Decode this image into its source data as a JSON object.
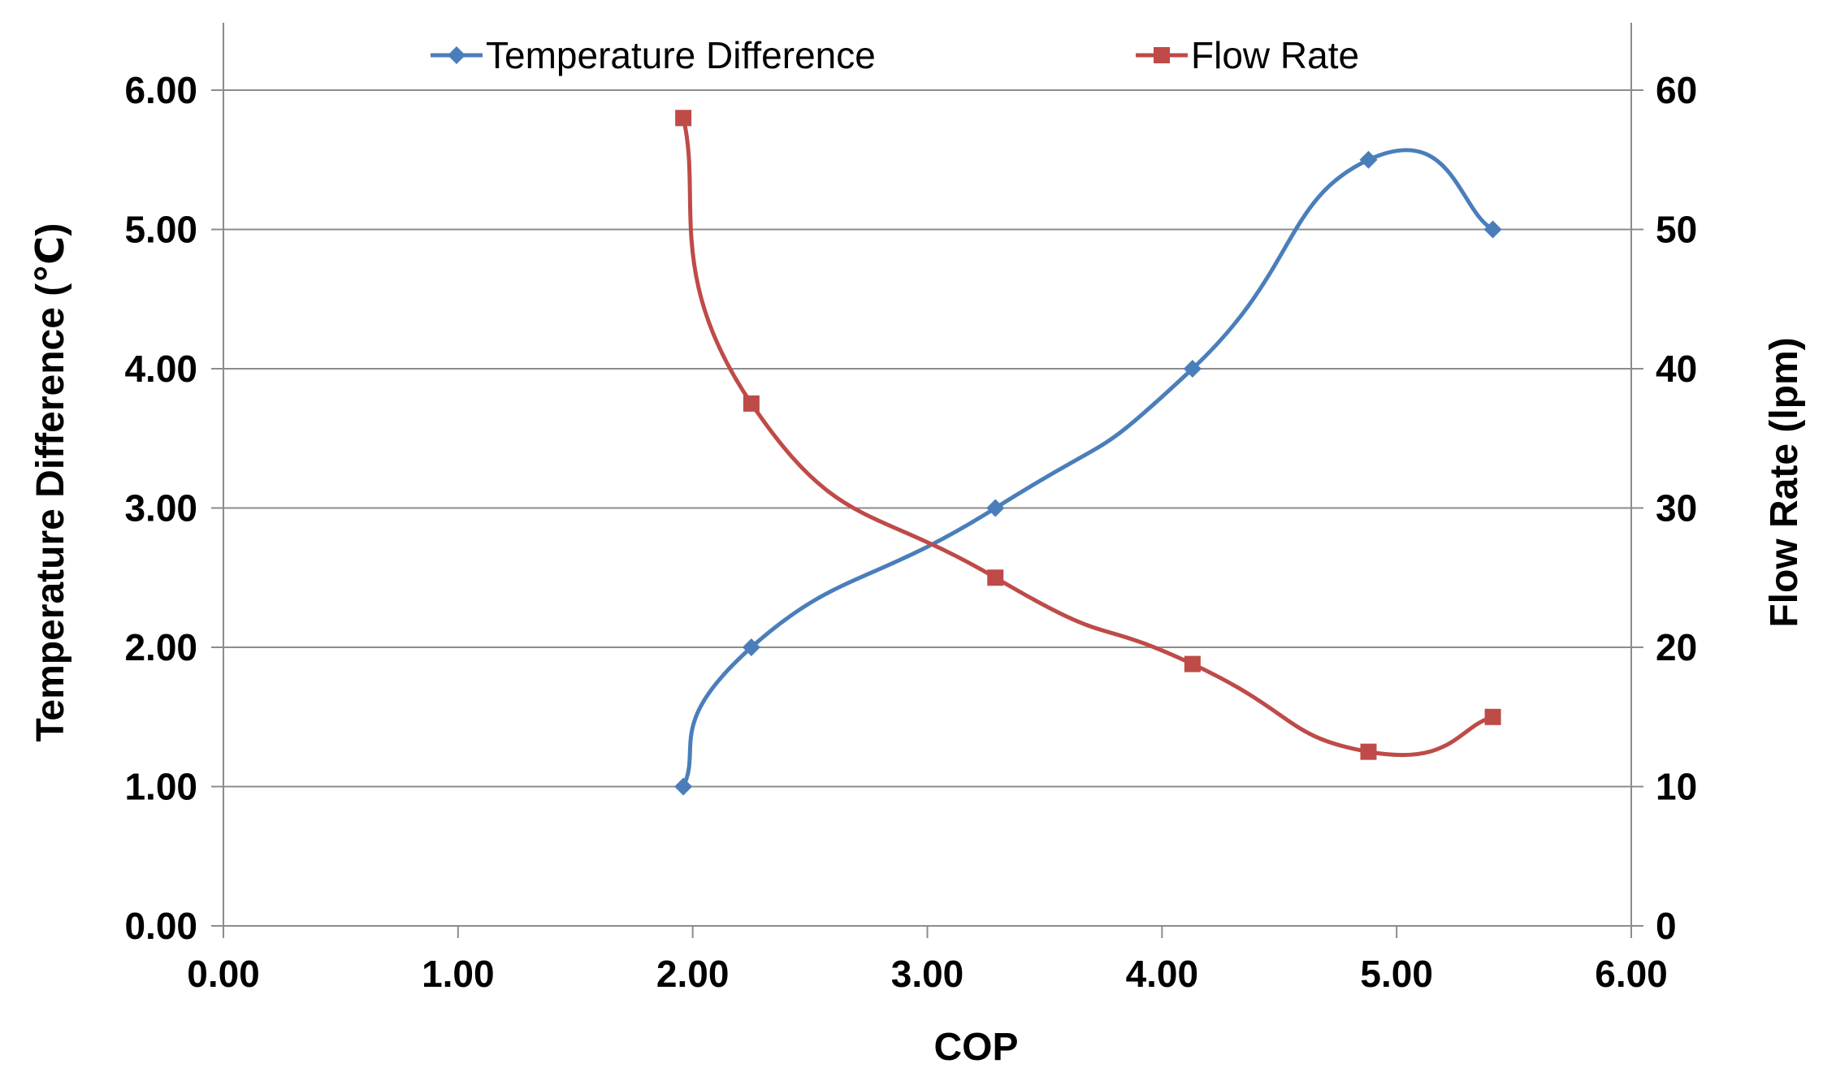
{
  "chart_data": {
    "type": "line",
    "title": "",
    "xlabel": "COP",
    "ylabel": "Temperature Difference (℃)",
    "y2label": "Flow Rate (lpm)",
    "xlim": [
      0,
      6
    ],
    "ylim": [
      0,
      6
    ],
    "y2lim": [
      0,
      60
    ],
    "x_ticks": [
      "0.00",
      "1.00",
      "2.00",
      "3.00",
      "4.00",
      "5.00",
      "6.00"
    ],
    "y_ticks": [
      "0.00",
      "1.00",
      "2.00",
      "3.00",
      "4.00",
      "5.00",
      "6.00"
    ],
    "y2_ticks": [
      "0",
      "10",
      "20",
      "30",
      "40",
      "50",
      "60"
    ],
    "grid": "horizontal",
    "legend_position": "top",
    "series": [
      {
        "name": "Temperature Difference",
        "axis": "left",
        "color": "#4a7ebb",
        "marker": "diamond",
        "x": [
          1.96,
          2.25,
          3.29,
          4.13,
          4.88,
          5.41
        ],
        "y": [
          1.0,
          2.0,
          3.0,
          4.0,
          5.5,
          5.0
        ]
      },
      {
        "name": "Flow Rate",
        "axis": "right",
        "color": "#be4b48",
        "marker": "square",
        "x": [
          1.96,
          2.25,
          3.29,
          4.13,
          4.88,
          5.41
        ],
        "y": [
          58.0,
          37.5,
          25.0,
          18.8,
          12.5,
          15.0
        ]
      }
    ]
  }
}
